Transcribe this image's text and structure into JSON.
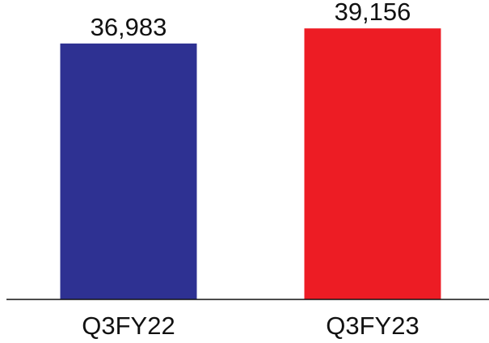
{
  "chart_data": {
    "type": "bar",
    "categories": [
      "Q3FY22",
      "Q3FY23"
    ],
    "values": [
      36983,
      39156
    ],
    "value_labels": [
      "36,983",
      "39,156"
    ],
    "colors": [
      "#2E3192",
      "#ED1C24"
    ],
    "axis_color": "#111111",
    "ylim": [
      0,
      40000
    ],
    "grid": false,
    "legend": "none",
    "title": "",
    "xlabel": "",
    "ylabel": ""
  }
}
